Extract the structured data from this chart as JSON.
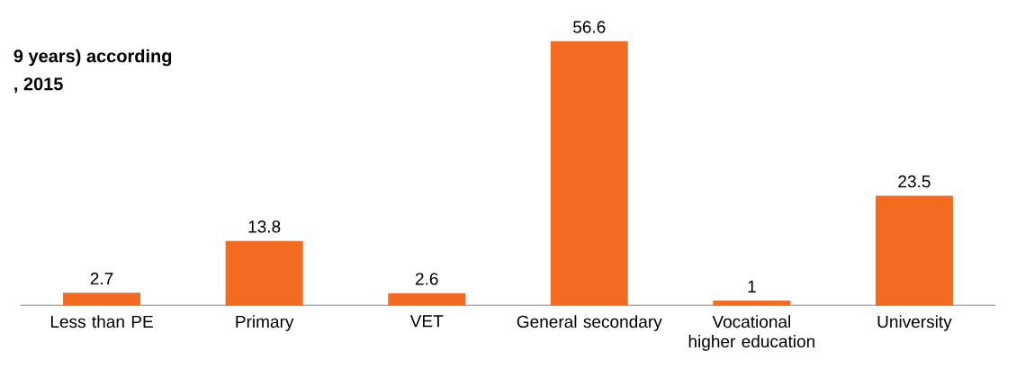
{
  "chart_data": {
    "type": "bar",
    "title": "9 years) according",
    "subtitle": ", 2015",
    "categories": [
      "Less than PE",
      "Primary",
      "VET",
      "General secondary",
      "Vocational higher education",
      "University"
    ],
    "values": [
      2.7,
      13.8,
      2.6,
      56.6,
      1,
      23.5
    ],
    "color": "#f26b21",
    "data_labels": true
  }
}
